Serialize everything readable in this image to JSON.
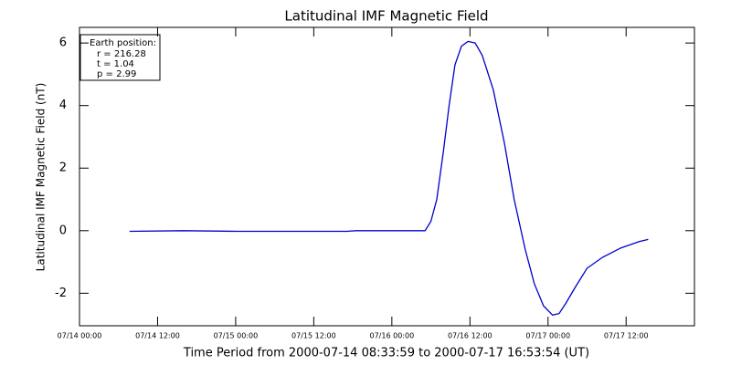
{
  "chart_data": {
    "type": "line",
    "title": "Latitudinal IMF Magnetic Field",
    "xlabel": "Time Period from 2000-07-14 08:33:59 to 2000-07-17 16:53:54 (UT)",
    "ylabel": "Latitudinal IMF Magnetic Field (nT)",
    "annotation": [
      "Earth position:",
      "r = 216.28",
      "t = 1.04",
      "p = 2.99"
    ],
    "xlim": [
      0,
      94.5
    ],
    "xticks": [
      {
        "value": 0,
        "label": "07/14 00:00"
      },
      {
        "value": 12,
        "label": "07/14 12:00"
      },
      {
        "value": 24,
        "label": "07/15 00:00"
      },
      {
        "value": 36,
        "label": "07/15 12:00"
      },
      {
        "value": 48,
        "label": "07/16 00:00"
      },
      {
        "value": 60,
        "label": "07/16 12:00"
      },
      {
        "value": 72,
        "label": "07/17 00:00"
      },
      {
        "value": 84,
        "label": "07/17 12:00"
      }
    ],
    "ylim": [
      -3.04,
      6.5
    ],
    "yticks": [
      -2,
      0,
      2,
      4,
      6
    ],
    "series": [
      {
        "name": "Latitudinal IMF Magnetic Field",
        "color": "#0000cc",
        "x": [
          7.7,
          15.9,
          24.3,
          41.1,
          42.5,
          53.1,
          54.0,
          54.9,
          55.9,
          56.8,
          57.7,
          58.7,
          59.7,
          60.8,
          61.9,
          63.6,
          65.3,
          66.8,
          68.5,
          69.9,
          71.3,
          72.7,
          73.7,
          74.8,
          76.2,
          78.0,
          80.4,
          83.2,
          86.0,
          87.4
        ],
        "values": [
          -0.02,
          0,
          -0.02,
          -0.02,
          0,
          0,
          0.3,
          1,
          2.5,
          4,
          5.3,
          5.9,
          6.05,
          6.0,
          5.6,
          4.5,
          2.8,
          1.0,
          -0.6,
          -1.7,
          -2.4,
          -2.7,
          -2.65,
          -2.3,
          -1.8,
          -1.2,
          -0.85,
          -0.55,
          -0.35,
          -0.28
        ]
      }
    ]
  }
}
